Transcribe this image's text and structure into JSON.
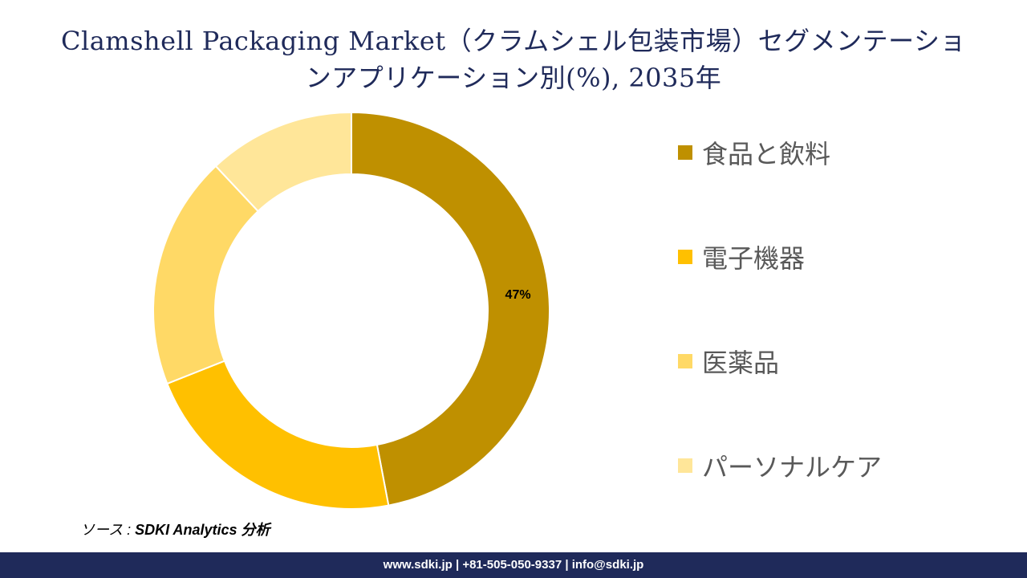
{
  "title": {
    "line1": "Clamshell Packaging Market（クラムシェル包装市場）セグメンテーショ",
    "line2": "ンアプリケーション別(%), 2035年"
  },
  "chart_data": {
    "type": "pie",
    "donut": true,
    "categories": [
      "食品と飲料",
      "電子機器",
      "医薬品",
      "パーソナルケア"
    ],
    "values": [
      47,
      22,
      19,
      12
    ],
    "colors": [
      "#bf9000",
      "#ffc000",
      "#ffd966",
      "#ffe699"
    ],
    "data_labels": [
      "47%",
      "",
      "",
      ""
    ],
    "legend_position": "right"
  },
  "legend": {
    "items": [
      {
        "label": "食品と飲料",
        "color": "#bf9000"
      },
      {
        "label": "電子機器",
        "color": "#ffc000"
      },
      {
        "label": "医薬品",
        "color": "#ffd966"
      },
      {
        "label": "パーソナルケア",
        "color": "#ffe699"
      }
    ]
  },
  "source": {
    "prefix": "ソース : ",
    "text": "SDKI Analytics 分析"
  },
  "footer": {
    "text": "www.sdki.jp | +81-505-050-9337 | info@sdki.jp"
  },
  "colors": {
    "title": "#1f2a5a",
    "footer_bg": "#1f2a5a",
    "legend_text": "#595959"
  }
}
